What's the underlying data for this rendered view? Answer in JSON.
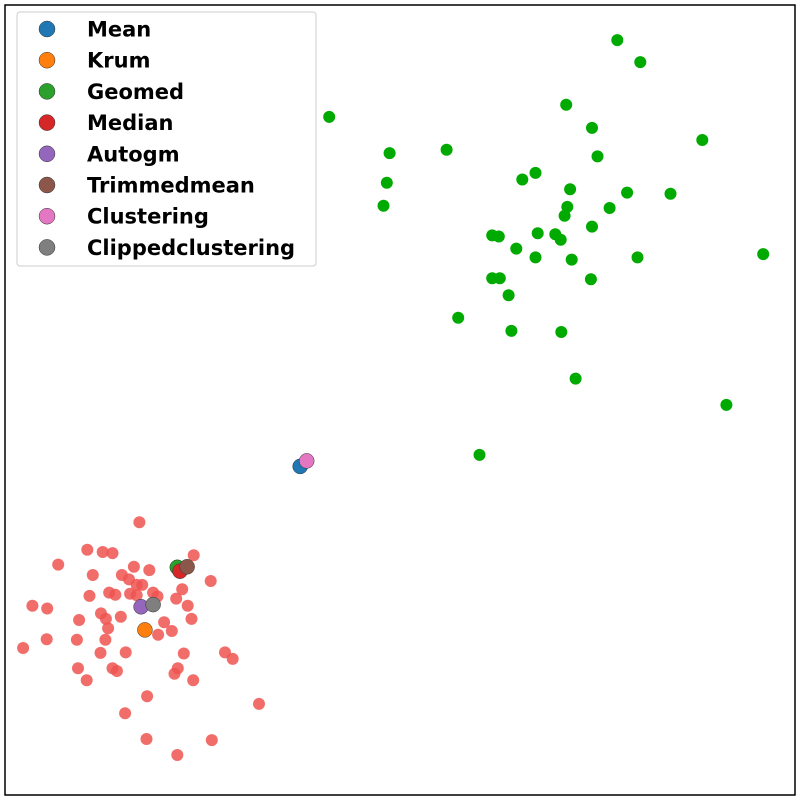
{
  "chart_data": {
    "type": "scatter",
    "title": "",
    "xlabel": "",
    "ylabel": "",
    "xlim": [
      -5.4,
      9.0
    ],
    "ylim": [
      -9.2,
      5.2
    ],
    "grid": false,
    "ticks_visible": false,
    "legend_placement": "top-left",
    "benign_color": "#00aa00",
    "malicious_color": "#ef5350",
    "benign_points": [
      {
        "x": 5.76,
        "y": 4.56
      },
      {
        "x": 6.18,
        "y": 4.16
      },
      {
        "x": 0.51,
        "y": 3.16
      },
      {
        "x": 4.83,
        "y": 3.38
      },
      {
        "x": 7.31,
        "y": 2.74
      },
      {
        "x": 5.3,
        "y": 2.96
      },
      {
        "x": 1.61,
        "y": 2.5
      },
      {
        "x": 2.65,
        "y": 2.56
      },
      {
        "x": 5.4,
        "y": 2.44
      },
      {
        "x": 1.56,
        "y": 1.96
      },
      {
        "x": 4.27,
        "y": 2.14
      },
      {
        "x": 4.03,
        "y": 2.02
      },
      {
        "x": 4.9,
        "y": 1.84
      },
      {
        "x": 5.94,
        "y": 1.78
      },
      {
        "x": 6.73,
        "y": 1.76
      },
      {
        "x": 1.5,
        "y": 1.54
      },
      {
        "x": 4.85,
        "y": 1.52
      },
      {
        "x": 5.62,
        "y": 1.5
      },
      {
        "x": 4.8,
        "y": 1.36
      },
      {
        "x": 5.3,
        "y": 1.16
      },
      {
        "x": 3.48,
        "y": 1.0
      },
      {
        "x": 3.6,
        "y": 0.98
      },
      {
        "x": 4.31,
        "y": 1.04
      },
      {
        "x": 4.63,
        "y": 1.02
      },
      {
        "x": 4.73,
        "y": 0.92
      },
      {
        "x": 3.92,
        "y": 0.76
      },
      {
        "x": 4.27,
        "y": 0.6
      },
      {
        "x": 4.93,
        "y": 0.56
      },
      {
        "x": 6.13,
        "y": 0.6
      },
      {
        "x": 8.42,
        "y": 0.66
      },
      {
        "x": 3.48,
        "y": 0.22
      },
      {
        "x": 3.62,
        "y": 0.22
      },
      {
        "x": 5.28,
        "y": 0.2
      },
      {
        "x": 3.78,
        "y": -0.09
      },
      {
        "x": 2.86,
        "y": -0.5
      },
      {
        "x": 3.83,
        "y": -0.74
      },
      {
        "x": 4.74,
        "y": -0.76
      },
      {
        "x": 5.0,
        "y": -1.61
      },
      {
        "x": 7.75,
        "y": -2.09
      },
      {
        "x": 3.25,
        "y": -3.0
      }
    ],
    "malicious_points": [
      {
        "x": -2.95,
        "y": -4.23
      },
      {
        "x": -1.96,
        "y": -4.83
      },
      {
        "x": -3.9,
        "y": -4.73
      },
      {
        "x": -3.62,
        "y": -4.77
      },
      {
        "x": -3.44,
        "y": -4.79
      },
      {
        "x": -4.43,
        "y": -5.0
      },
      {
        "x": -3.05,
        "y": -5.04
      },
      {
        "x": -2.77,
        "y": -5.1
      },
      {
        "x": -3.8,
        "y": -5.19
      },
      {
        "x": -3.27,
        "y": -5.19
      },
      {
        "x": -3.14,
        "y": -5.27
      },
      {
        "x": -2.9,
        "y": -5.37
      },
      {
        "x": -3.0,
        "y": -5.37
      },
      {
        "x": -1.65,
        "y": -5.3
      },
      {
        "x": -3.12,
        "y": -5.53
      },
      {
        "x": -3.5,
        "y": -5.51
      },
      {
        "x": -3.39,
        "y": -5.55
      },
      {
        "x": -2.7,
        "y": -5.51
      },
      {
        "x": -3.86,
        "y": -5.57
      },
      {
        "x": -2.28,
        "y": -5.62
      },
      {
        "x": -3.0,
        "y": -5.56
      },
      {
        "x": -2.62,
        "y": -5.58
      },
      {
        "x": -2.17,
        "y": -5.45
      },
      {
        "x": -2.07,
        "y": -5.75
      },
      {
        "x": -4.9,
        "y": -5.75
      },
      {
        "x": -4.63,
        "y": -5.8
      },
      {
        "x": -3.65,
        "y": -5.89
      },
      {
        "x": -3.29,
        "y": -5.95
      },
      {
        "x": -2.0,
        "y": -5.99
      },
      {
        "x": -3.56,
        "y": -5.99
      },
      {
        "x": -4.05,
        "y": -6.01
      },
      {
        "x": -2.5,
        "y": -6.05
      },
      {
        "x": -3.52,
        "y": -6.16
      },
      {
        "x": -2.36,
        "y": -6.21
      },
      {
        "x": -4.64,
        "y": -6.36
      },
      {
        "x": -4.09,
        "y": -6.37
      },
      {
        "x": -3.57,
        "y": -6.37
      },
      {
        "x": -2.61,
        "y": -6.28
      },
      {
        "x": -5.07,
        "y": -6.52
      },
      {
        "x": -3.66,
        "y": -6.61
      },
      {
        "x": -3.2,
        "y": -6.6
      },
      {
        "x": -2.14,
        "y": -6.62
      },
      {
        "x": -1.39,
        "y": -6.6
      },
      {
        "x": -1.25,
        "y": -6.72
      },
      {
        "x": -4.07,
        "y": -6.89
      },
      {
        "x": -3.44,
        "y": -6.89
      },
      {
        "x": -3.36,
        "y": -6.94
      },
      {
        "x": -2.25,
        "y": -6.89
      },
      {
        "x": -2.31,
        "y": -6.99
      },
      {
        "x": -3.91,
        "y": -7.11
      },
      {
        "x": -1.97,
        "y": -7.11
      },
      {
        "x": -2.81,
        "y": -7.4
      },
      {
        "x": -0.77,
        "y": -7.54
      },
      {
        "x": -3.21,
        "y": -7.71
      },
      {
        "x": -2.82,
        "y": -8.18
      },
      {
        "x": -1.63,
        "y": -8.2
      },
      {
        "x": -2.26,
        "y": -8.47
      }
    ],
    "series": [
      {
        "name": "Mean",
        "color": "#1f77b4",
        "points": [
          {
            "x": -0.02,
            "y": -3.21
          }
        ]
      },
      {
        "name": "Krum",
        "color": "#ff7f0e",
        "points": [
          {
            "x": -2.85,
            "y": -6.19
          }
        ]
      },
      {
        "name": "Geomed",
        "color": "#2ca02c",
        "points": [
          {
            "x": -2.26,
            "y": -5.05
          }
        ]
      },
      {
        "name": "Median",
        "color": "#d62728",
        "points": [
          {
            "x": -2.21,
            "y": -5.12
          }
        ]
      },
      {
        "name": "Autogm",
        "color": "#9467bd",
        "points": [
          {
            "x": -2.92,
            "y": -5.77
          }
        ]
      },
      {
        "name": "Trimmedmean",
        "color": "#8c564b",
        "points": [
          {
            "x": -2.08,
            "y": -5.04
          }
        ]
      },
      {
        "name": "Clustering",
        "color": "#e377c2",
        "points": [
          {
            "x": 0.1,
            "y": -3.11
          }
        ]
      },
      {
        "name": "Clippedclustering",
        "color": "#7f7f7f",
        "points": [
          {
            "x": -2.7,
            "y": -5.73
          }
        ]
      }
    ]
  }
}
